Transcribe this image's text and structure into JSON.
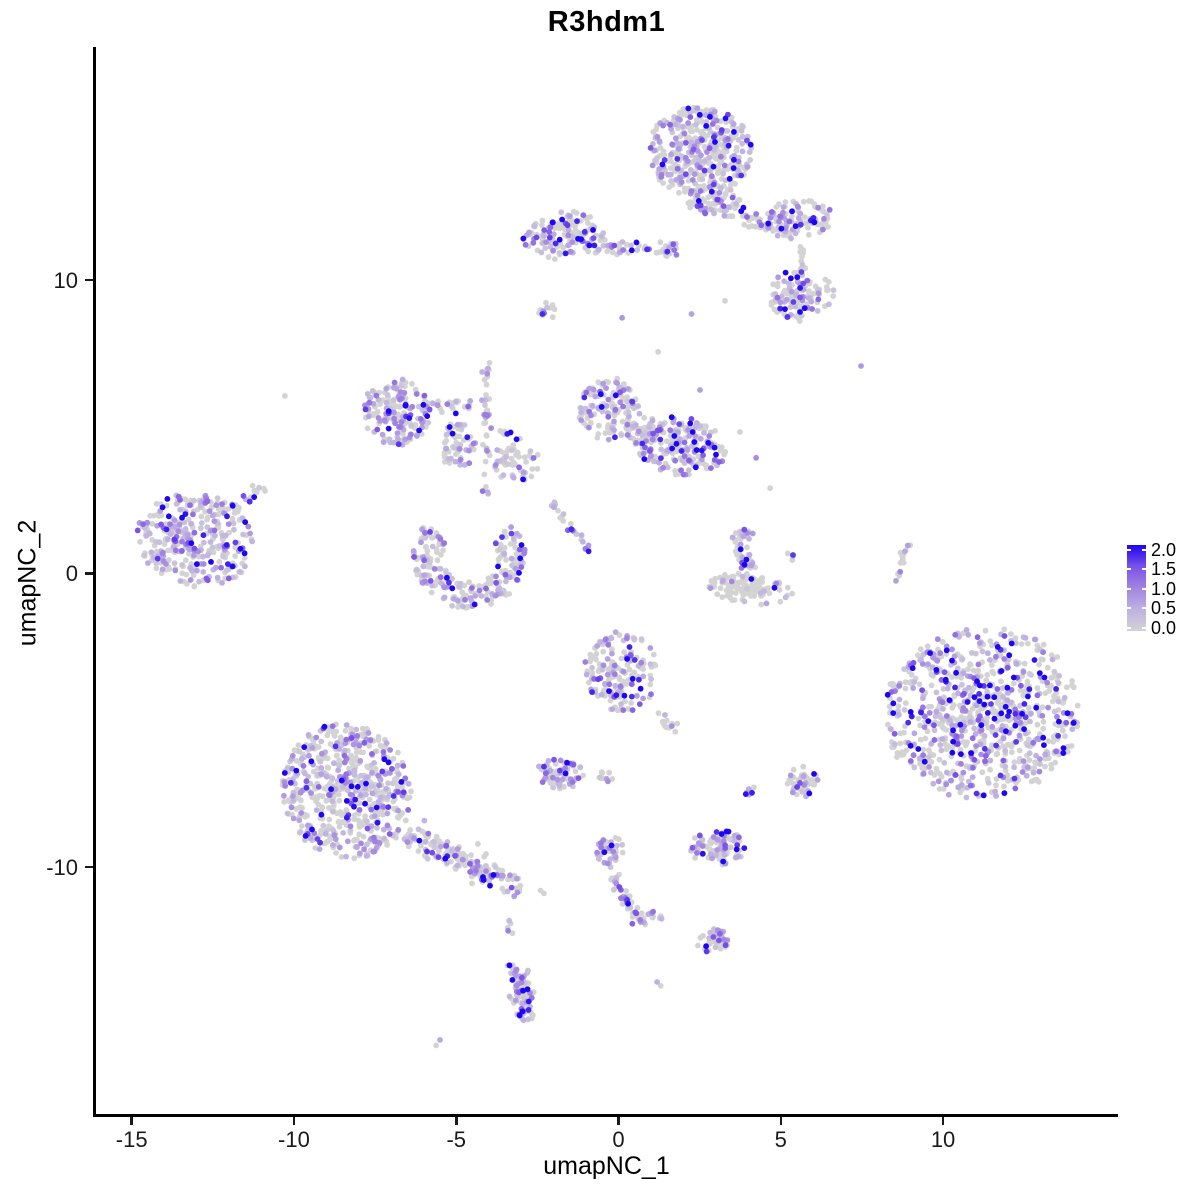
{
  "title": "R3hdm1",
  "axes": {
    "x": {
      "label": "umapNC_1",
      "ticks": [
        "-15",
        "-10",
        "-5",
        "0",
        "5",
        "10"
      ],
      "tick_values": [
        -15,
        -10,
        -5,
        0,
        5,
        10
      ]
    },
    "y": {
      "label": "umapNC_2",
      "ticks": [
        "-10",
        "0",
        "10"
      ],
      "tick_values": [
        -10,
        0,
        10
      ]
    }
  },
  "legend": {
    "tick_labels": [
      "2.0",
      "1.5",
      "1.0",
      "0.5",
      "0.0"
    ]
  },
  "chart_data": {
    "type": "scatter",
    "title": "R3hdm1",
    "xlabel": "umapNC_1",
    "ylabel": "umapNC_2",
    "xlim": [
      -16.13,
      15.39
    ],
    "ylim": [
      -18.45,
      17.87
    ],
    "grid": false,
    "legend_position": "right",
    "point_radius_px": 2.9,
    "seed": 42,
    "color_scale": {
      "label_values": [
        2.0,
        1.5,
        1.0,
        0.5,
        0.0
      ],
      "range": [
        0,
        2
      ],
      "low": "#d3d3d3",
      "high": "#1b05f2",
      "stops": [
        {
          "t": 0.0,
          "c": "#d3d3d3"
        },
        {
          "t": 0.25,
          "c": "#bfb1e2"
        },
        {
          "t": 0.5,
          "c": "#a285e0"
        },
        {
          "t": 0.75,
          "c": "#7b52e8"
        },
        {
          "t": 1.0,
          "c": "#1b05f2"
        }
      ]
    },
    "clusters": [
      {
        "type": "blob",
        "cx": 2.51,
        "cy": 14.36,
        "rx": 1.62,
        "ry": 1.55,
        "rot": -10,
        "n": 400,
        "f": 0.45,
        "s": 0.5
      },
      {
        "type": "blob",
        "cx": 2.88,
        "cy": 12.73,
        "rx": 0.85,
        "ry": 0.62,
        "rot": 0,
        "n": 80,
        "f": 0.4,
        "s": 0.5
      },
      {
        "type": "chain",
        "x1": 3.28,
        "y1": 12.39,
        "x2": 5.44,
        "y2": 11.47,
        "w": 0.3,
        "n": 50,
        "f": 0.4,
        "s": 0.5
      },
      {
        "type": "blob",
        "cx": 5.59,
        "cy": 12.11,
        "rx": 1.05,
        "ry": 0.62,
        "rot": 0,
        "n": 85,
        "f": 0.4,
        "s": 0.5
      },
      {
        "type": "chain",
        "x1": 5.6,
        "y1": 11.3,
        "x2": 5.75,
        "y2": 10.3,
        "w": 0.15,
        "n": 8,
        "f": 0.3,
        "s": 0.5
      },
      {
        "type": "blob",
        "cx": 5.65,
        "cy": 9.46,
        "rx": 1.0,
        "ry": 0.95,
        "rot": 0,
        "n": 110,
        "f": 0.45,
        "s": 0.5
      },
      {
        "type": "blob",
        "cx": -1.65,
        "cy": 11.5,
        "rx": 1.3,
        "ry": 0.85,
        "rot": 0,
        "n": 150,
        "f": 0.5,
        "s": 0.6
      },
      {
        "type": "chain",
        "x1": -0.35,
        "y1": 11.12,
        "x2": 0.97,
        "y2": 11.09,
        "w": 0.2,
        "n": 28,
        "f": 0.35,
        "s": 0.5
      },
      {
        "type": "blob",
        "cx": 1.53,
        "cy": 11.06,
        "rx": 0.42,
        "ry": 0.3,
        "rot": 0,
        "n": 22,
        "f": 0.4,
        "s": 0.5
      },
      {
        "type": "blob",
        "cx": -2.23,
        "cy": 8.91,
        "rx": 0.3,
        "ry": 0.35,
        "rot": 0,
        "n": 12,
        "f": 0.5,
        "s": 0.5
      },
      {
        "type": "blob",
        "cx": -6.83,
        "cy": 5.5,
        "rx": 1.05,
        "ry": 1.15,
        "rot": 15,
        "n": 175,
        "f": 0.5,
        "s": 0.55
      },
      {
        "type": "chain",
        "x1": -5.75,
        "y1": 5.78,
        "x2": -4.51,
        "y2": 5.67,
        "w": 0.28,
        "n": 26,
        "f": 0.35,
        "s": 0.5
      },
      {
        "type": "blob",
        "cx": -4.95,
        "cy": 4.31,
        "rx": 0.55,
        "ry": 0.85,
        "rot": 0,
        "n": 60,
        "f": 0.45,
        "s": 0.5
      },
      {
        "type": "chain",
        "x1": -4.08,
        "y1": 7.21,
        "x2": -4.05,
        "y2": 2.57,
        "w": 0.13,
        "n": 38,
        "f": 0.45,
        "s": 0.5
      },
      {
        "type": "blob",
        "cx": -3.16,
        "cy": 3.8,
        "rx": 0.75,
        "ry": 0.65,
        "rot": 0,
        "n": 55,
        "f": 0.4,
        "s": 0.5
      },
      {
        "type": "chain",
        "x1": -3.65,
        "y1": 4.89,
        "x2": -3.0,
        "y2": 4.5,
        "w": 0.1,
        "n": 8,
        "f": 0.5,
        "s": 0.5
      },
      {
        "type": "blob",
        "cx": -0.29,
        "cy": 5.6,
        "rx": 0.95,
        "ry": 1.1,
        "rot": 0,
        "n": 130,
        "f": 0.4,
        "s": 0.6
      },
      {
        "type": "blob",
        "cx": 1.93,
        "cy": 4.34,
        "rx": 1.42,
        "ry": 0.98,
        "rot": -8,
        "n": 210,
        "f": 0.45,
        "s": 0.6
      },
      {
        "type": "blob",
        "cx": 0.85,
        "cy": 4.82,
        "rx": 0.6,
        "ry": 0.5,
        "rot": 0,
        "n": 50,
        "f": 0.4,
        "s": 0.55
      },
      {
        "type": "chain",
        "x1": -2.14,
        "y1": 2.57,
        "x2": -0.63,
        "y2": 0.39,
        "w": 0.15,
        "n": 24,
        "f": 0.5,
        "s": 0.5
      },
      {
        "type": "blob",
        "cx": -13.02,
        "cy": 1.14,
        "rx": 1.85,
        "ry": 1.58,
        "rot": -15,
        "n": 340,
        "f": 0.62,
        "s": 0.5
      },
      {
        "type": "chain",
        "x1": -11.91,
        "y1": 2.1,
        "x2": -10.99,
        "y2": 2.98,
        "w": 0.2,
        "n": 20,
        "f": 0.5,
        "s": 0.5
      },
      {
        "type": "ring",
        "cx": -4.58,
        "cy": 0.56,
        "rIn": 0.85,
        "rOut": 1.75,
        "a1": 140,
        "a2": 400,
        "n": 240,
        "f": 0.45,
        "s": 0.5
      },
      {
        "type": "chain",
        "x1": 3.71,
        "y1": 1.45,
        "x2": 4.11,
        "y2": 0.09,
        "w": 0.3,
        "n": 48,
        "f": 0.5,
        "s": 0.55
      },
      {
        "type": "blob",
        "cx": 4.05,
        "cy": -0.53,
        "rx": 1.35,
        "ry": 0.52,
        "rot": -8,
        "n": 120,
        "f": 0.12,
        "s": 0.45
      },
      {
        "type": "blob",
        "cx": 5.29,
        "cy": 0.6,
        "rx": 0.15,
        "ry": 0.25,
        "rot": 0,
        "n": 4,
        "f": 0.5,
        "s": 0.5
      },
      {
        "type": "chain",
        "x1": 8.9,
        "y1": 1.0,
        "x2": 8.6,
        "y2": -0.1,
        "w": 0.1,
        "n": 13,
        "f": 0.1,
        "s": 0.6
      },
      {
        "type": "blob",
        "cx": 11.2,
        "cy": -4.75,
        "rx": 3.05,
        "ry": 2.92,
        "rot": 20,
        "n": 830,
        "f": 0.5,
        "s": 0.66
      },
      {
        "type": "blob",
        "cx": 0.08,
        "cy": -3.36,
        "rx": 1.15,
        "ry": 1.38,
        "rot": 0,
        "n": 170,
        "f": 0.45,
        "s": 0.55
      },
      {
        "type": "chain",
        "x1": 1.12,
        "y1": -4.82,
        "x2": 1.77,
        "y2": -5.37,
        "w": 0.15,
        "n": 14,
        "f": 0.4,
        "s": 0.5
      },
      {
        "type": "blob",
        "cx": -1.8,
        "cy": -6.83,
        "rx": 0.82,
        "ry": 0.52,
        "rot": -12,
        "n": 75,
        "f": 0.55,
        "s": 0.6
      },
      {
        "type": "blob",
        "cx": -0.39,
        "cy": -7.0,
        "rx": 0.26,
        "ry": 0.3,
        "rot": 0,
        "n": 10,
        "f": 0.5,
        "s": 0.5
      },
      {
        "type": "blob",
        "cx": 4.08,
        "cy": -7.44,
        "rx": 0.18,
        "ry": 0.22,
        "rot": 0,
        "n": 7,
        "f": 0.85,
        "s": 0.6
      },
      {
        "type": "blob",
        "cx": 5.65,
        "cy": -7.07,
        "rx": 0.5,
        "ry": 0.55,
        "rot": 0,
        "n": 45,
        "f": 0.4,
        "s": 0.5
      },
      {
        "type": "blob",
        "cx": -8.37,
        "cy": -7.41,
        "rx": 1.98,
        "ry": 2.32,
        "rot": 10,
        "n": 620,
        "f": 0.42,
        "s": 0.5
      },
      {
        "type": "chain",
        "x1": -6.49,
        "y1": -8.84,
        "x2": -3.65,
        "y2": -10.48,
        "w": 0.45,
        "n": 150,
        "f": 0.4,
        "s": 0.5
      },
      {
        "type": "blob",
        "cx": -3.28,
        "cy": -10.65,
        "rx": 0.32,
        "ry": 0.38,
        "rot": 0,
        "n": 20,
        "f": 0.4,
        "s": 0.5
      },
      {
        "type": "blob",
        "cx": -3.34,
        "cy": -12.08,
        "rx": 0.12,
        "ry": 0.3,
        "rot": 0,
        "n": 5,
        "f": 0.2,
        "s": 0.4
      },
      {
        "type": "blob",
        "cx": 3.04,
        "cy": -9.32,
        "rx": 0.86,
        "ry": 0.62,
        "rot": 0,
        "n": 95,
        "f": 0.5,
        "s": 0.5
      },
      {
        "type": "blob",
        "cx": -0.26,
        "cy": -9.45,
        "rx": 0.42,
        "ry": 0.56,
        "rot": 0,
        "n": 45,
        "f": 0.5,
        "s": 0.5
      },
      {
        "type": "chain",
        "x1": -0.2,
        "y1": -10.37,
        "x2": 0.75,
        "y2": -12.01,
        "w": 0.17,
        "n": 50,
        "f": 0.5,
        "s": 0.55
      },
      {
        "type": "chain",
        "x1": 0.85,
        "y1": -11.57,
        "x2": 1.4,
        "y2": -11.77,
        "w": 0.1,
        "n": 10,
        "f": 0.4,
        "s": 0.5
      },
      {
        "type": "blob",
        "cx": 2.91,
        "cy": -12.52,
        "rx": 0.55,
        "ry": 0.42,
        "rot": 0,
        "n": 48,
        "f": 0.45,
        "s": 0.5
      },
      {
        "type": "chain",
        "x1": -3.25,
        "y1": -13.3,
        "x2": -2.82,
        "y2": -15.21,
        "w": 0.32,
        "n": 85,
        "f": 0.55,
        "s": 0.55
      }
    ],
    "singles": [
      [
        -10.28,
        6.05,
        0
      ],
      [
        0.11,
        8.71,
        0.8
      ],
      [
        1.22,
        7.55,
        0
      ],
      [
        2.51,
        6.25,
        0.7
      ],
      [
        3.74,
        4.82,
        0
      ],
      [
        4.24,
        3.94,
        0.9
      ],
      [
        4.67,
        2.91,
        0
      ],
      [
        3.28,
        9.29,
        0
      ],
      [
        2.25,
        8.84,
        0.7
      ],
      [
        -2.4,
        -10.8,
        0
      ],
      [
        1.19,
        -13.92,
        0.5
      ],
      [
        1.3,
        -14.05,
        0
      ],
      [
        7.47,
        7.07,
        0.8
      ],
      [
        -5.5,
        -15.89,
        0.6
      ],
      [
        -5.62,
        -16.08,
        0
      ],
      [
        8.55,
        -0.25,
        0.7
      ],
      [
        -2.3,
        -10.9,
        0
      ]
    ]
  }
}
